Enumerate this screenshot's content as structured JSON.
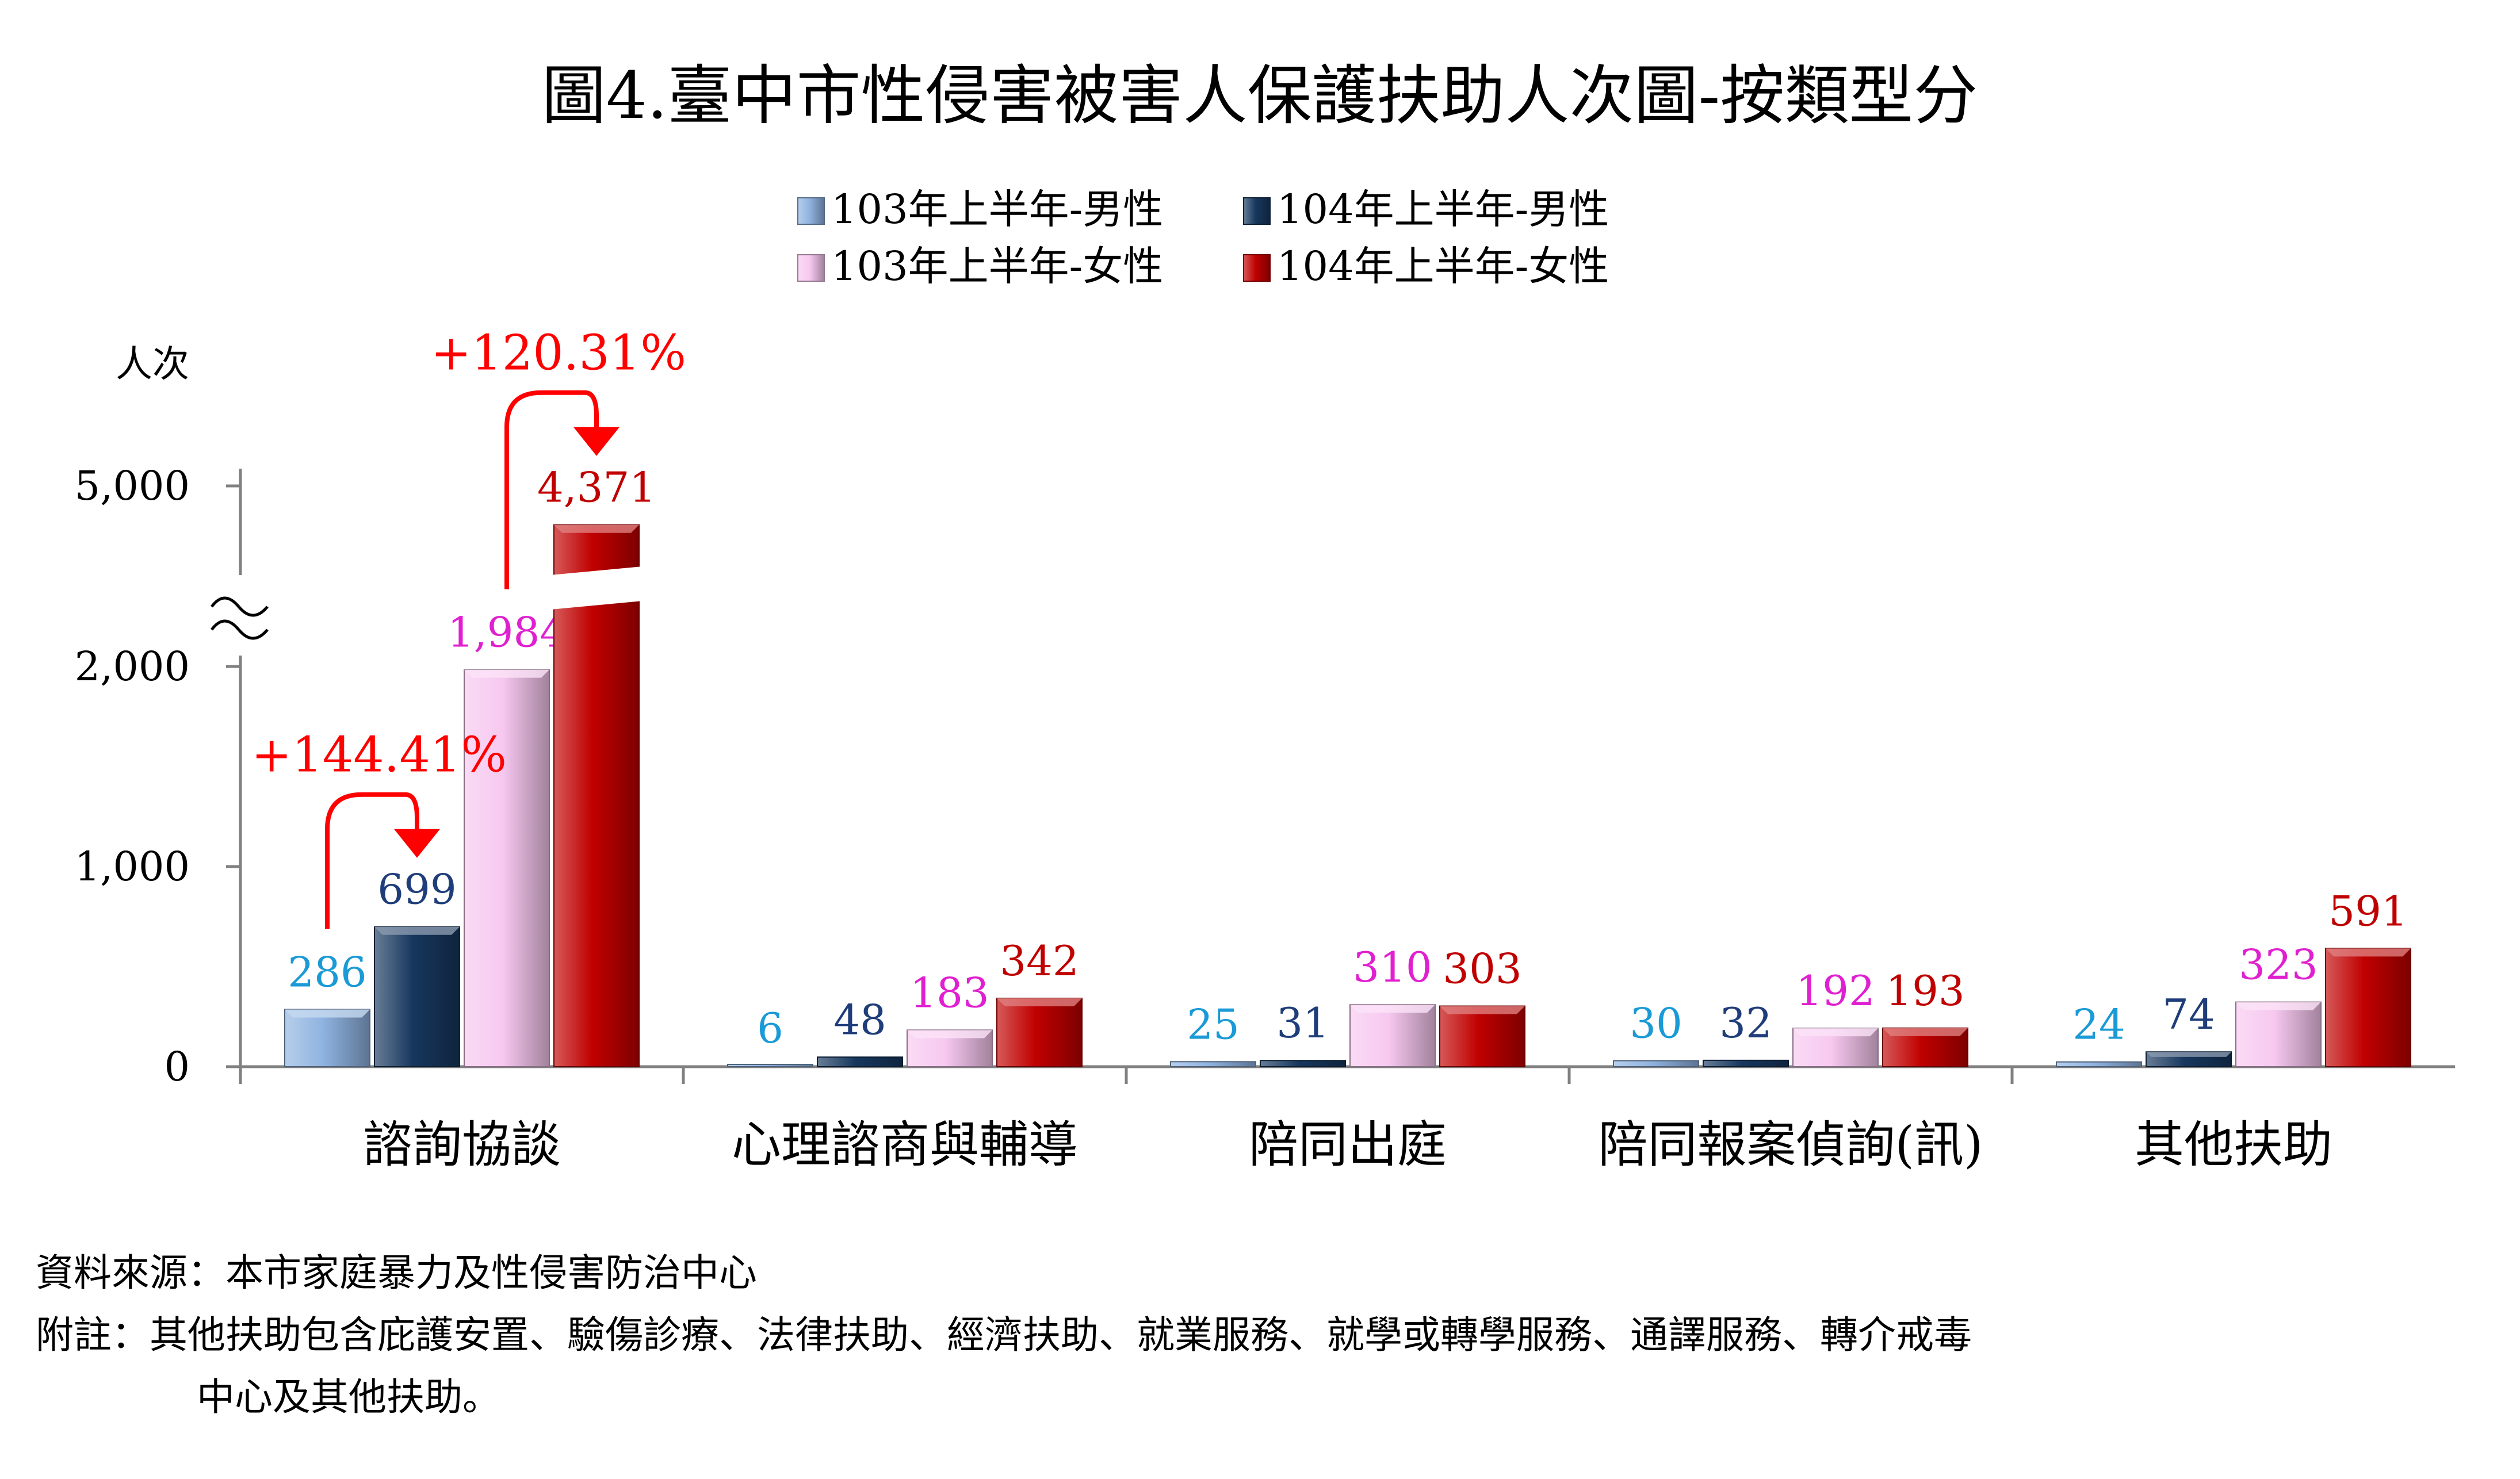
{
  "chart_data": {
    "type": "bar",
    "title": "圖4.臺中市性侵害被害人保護扶助人次圖-按類型分",
    "ylabel": "人次",
    "categories": [
      "諮詢協談",
      "心理諮商與輔導",
      "陪同出庭",
      "陪同報案偵詢(訊)",
      "其他扶助"
    ],
    "series": [
      {
        "name": "103年上半年-男性",
        "values": [
          286,
          6,
          25,
          30,
          24
        ],
        "color": "#8fb3e0",
        "label_color": "#1a9ad6"
      },
      {
        "name": "104年上半年-男性",
        "values": [
          699,
          48,
          31,
          32,
          74
        ],
        "color": "#17375e",
        "label_color": "#1f3d7a"
      },
      {
        "name": "103年上半年-女性",
        "values": [
          1984,
          183,
          310,
          192,
          323
        ],
        "color": "#f7c8f0",
        "label_color": "#e020d0"
      },
      {
        "name": "104年上半年-女性",
        "values": [
          4371,
          342,
          303,
          193,
          591
        ],
        "color": "#c00000",
        "label_color": "#c00000"
      }
    ],
    "value_labels": [
      [
        "286",
        "6",
        "25",
        "30",
        "24"
      ],
      [
        "699",
        "48",
        "31",
        "32",
        "74"
      ],
      [
        "1,984",
        "183",
        "310",
        "192",
        "323"
      ],
      [
        "4,371",
        "342",
        "303",
        "193",
        "591"
      ]
    ],
    "yticks": [
      {
        "value": 0,
        "label": "0"
      },
      {
        "value": 1000,
        "label": "1,000"
      },
      {
        "value": 2000,
        "label": "2,000"
      },
      {
        "value": 5000,
        "label": "5,000"
      }
    ],
    "axis_break": {
      "from": 2000,
      "to": 5000
    },
    "legend_position": "top-center",
    "grid": false,
    "annotations": [
      {
        "text": "+120.31%",
        "from_series": 2,
        "to_series": 3,
        "category": 0,
        "color": "#ff0000"
      },
      {
        "text": "+144.41%",
        "from_series": 0,
        "to_series": 1,
        "category": 0,
        "color": "#ff0000"
      }
    ]
  },
  "notes": {
    "source": "資料來源：本市家庭暴力及性侵害防治中心",
    "note_line1": "附註：其他扶助包含庇護安置、驗傷診療、法律扶助、經濟扶助、就業服務、就學或轉學服務、通譯服務、轉介戒毒",
    "note_line2": "中心及其他扶助。"
  }
}
